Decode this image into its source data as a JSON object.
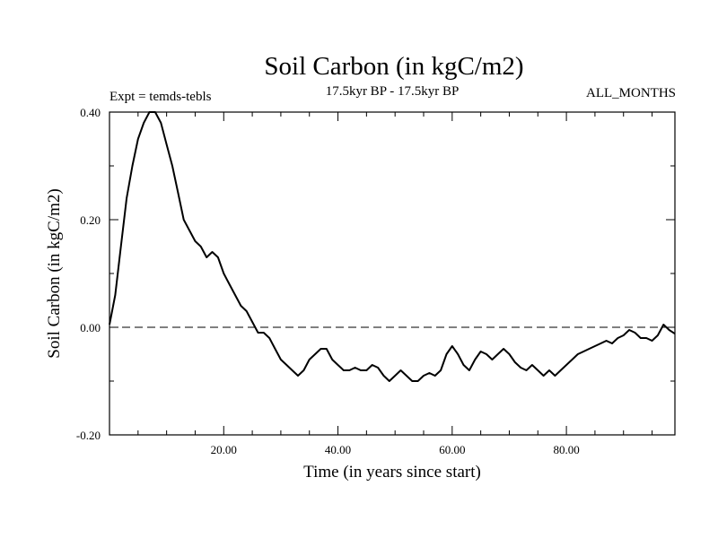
{
  "chart_data": {
    "type": "line",
    "title": "Soil Carbon (in kgC/m2)",
    "subtitle": "17.5kyr BP - 17.5kyr BP",
    "header_left": "Expt = temds-tebls",
    "header_right": "ALL_MONTHS",
    "xlabel": "Time (in years since start)",
    "ylabel": "Soil Carbon (in kgC/m2)",
    "xlim": [
      0,
      99
    ],
    "ylim": [
      -0.2,
      0.4
    ],
    "x_ticks": [
      20,
      40,
      60,
      80
    ],
    "x_tick_labels": [
      "20.00",
      "40.00",
      "60.00",
      "80.00"
    ],
    "y_ticks": [
      -0.2,
      0,
      0.2,
      0.4
    ],
    "y_tick_labels": [
      "-0.20",
      "0.00",
      "0.20",
      "0.40"
    ],
    "reference_line": {
      "y": 0,
      "style": "dashed"
    },
    "grid": false,
    "series": [
      {
        "x": [
          0,
          1,
          2,
          3,
          4,
          5,
          6,
          7,
          8,
          9,
          10,
          11,
          12,
          13,
          14,
          15,
          16,
          17,
          18,
          19,
          20,
          21,
          22,
          23,
          24,
          25,
          26,
          27,
          28,
          29,
          30,
          31,
          32,
          33,
          34,
          35,
          36,
          37,
          38,
          39,
          40,
          41,
          42,
          43,
          44,
          45,
          46,
          47,
          48,
          49,
          50,
          51,
          52,
          53,
          54,
          55,
          56,
          57,
          58,
          59,
          60,
          61,
          62,
          63,
          64,
          65,
          66,
          67,
          68,
          69,
          70,
          71,
          72,
          73,
          74,
          75,
          76,
          77,
          78,
          79,
          80,
          81,
          82,
          83,
          84,
          85,
          86,
          87,
          88,
          89,
          90,
          91,
          92,
          93,
          94,
          95,
          96,
          97,
          98,
          99
        ],
        "values": [
          0.005,
          0.06,
          0.15,
          0.24,
          0.3,
          0.35,
          0.38,
          0.4,
          0.4,
          0.38,
          0.34,
          0.3,
          0.25,
          0.2,
          0.18,
          0.16,
          0.15,
          0.13,
          0.14,
          0.13,
          0.1,
          0.08,
          0.06,
          0.04,
          0.03,
          0.01,
          -0.01,
          -0.01,
          -0.02,
          -0.04,
          -0.06,
          -0.07,
          -0.08,
          -0.09,
          -0.08,
          -0.06,
          -0.05,
          -0.04,
          -0.04,
          -0.06,
          -0.07,
          -0.08,
          -0.08,
          -0.075,
          -0.08,
          -0.08,
          -0.07,
          -0.075,
          -0.09,
          -0.1,
          -0.09,
          -0.08,
          -0.09,
          -0.1,
          -0.1,
          -0.09,
          -0.085,
          -0.09,
          -0.08,
          -0.05,
          -0.035,
          -0.05,
          -0.07,
          -0.08,
          -0.06,
          -0.045,
          -0.05,
          -0.06,
          -0.05,
          -0.04,
          -0.05,
          -0.065,
          -0.075,
          -0.08,
          -0.07,
          -0.08,
          -0.09,
          -0.08,
          -0.09,
          -0.08,
          -0.07,
          -0.06,
          -0.05,
          -0.045,
          -0.04,
          -0.035,
          -0.03,
          -0.025,
          -0.03,
          -0.02,
          -0.015,
          -0.005,
          -0.01,
          -0.02,
          -0.02,
          -0.025,
          -0.015,
          0.005,
          -0.005,
          -0.012
        ]
      }
    ]
  }
}
